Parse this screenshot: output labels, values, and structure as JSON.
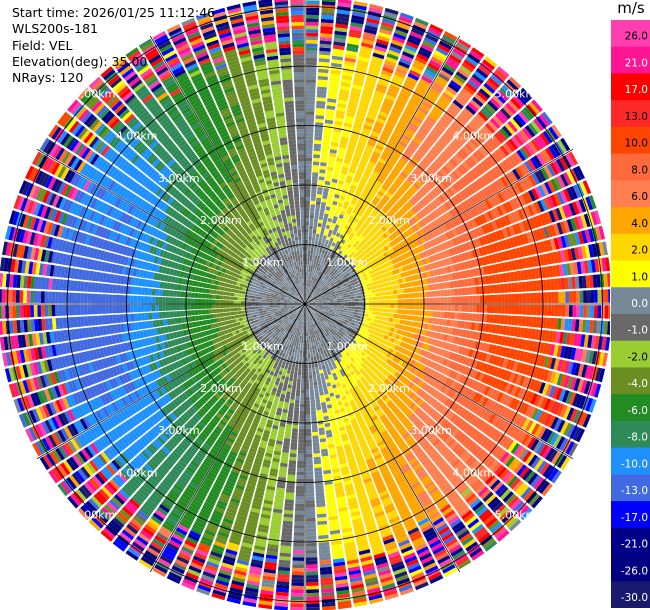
{
  "info": {
    "start_time": "Start time: 2026/01/25 11:12:46",
    "instrument": "WLS200s-181",
    "field": "Field: VEL",
    "elevation": "Elevation(deg): 35.00",
    "nrays": "NRays: 120"
  },
  "colorbar": {
    "unit": "m/s",
    "tick_labels": [
      "26.0",
      "21.0",
      "17.0",
      "13.0",
      "10.0",
      "8.0",
      "6.0",
      "4.0",
      "2.0",
      "1.0",
      "0.0",
      "-1.0",
      "-2.0",
      "-4.0",
      "-6.0",
      "-8.0",
      "-10.0",
      "-13.0",
      "-17.0",
      "-21.0",
      "-26.0",
      "-30.0"
    ],
    "colors": [
      "#ff3eb0",
      "#ff1493",
      "#ff0000",
      "#ff2828",
      "#ff4500",
      "#ff6a3d",
      "#ff7f50",
      "#ffa500",
      "#ffd700",
      "#ffff00",
      "#778899",
      "#696969",
      "#9acd32",
      "#6b8e23",
      "#228b22",
      "#2e8b57",
      "#1e90ff",
      "#4169e1",
      "#0000ff",
      "#00008b",
      "#000080",
      "#191970"
    ]
  },
  "chart_data": {
    "type": "heatmap",
    "projection": "polar PPI",
    "title": "",
    "field": "VEL",
    "unit": "m/s",
    "nrays": 120,
    "elevation_deg": 35.0,
    "range_rings_km": [
      1.0,
      2.0,
      3.0,
      4.0,
      5.0
    ],
    "ring_labels": [
      "1.00km",
      "2.00km",
      "3.00km",
      "4.00km",
      "5.00km"
    ],
    "max_range_km": 5.2,
    "color_scale_m_s": [
      -30,
      -26,
      -21,
      -17,
      -13,
      -10,
      -8,
      -6,
      -4,
      -2,
      -1,
      0,
      1,
      2,
      4,
      6,
      8,
      10,
      13,
      17,
      21,
      26
    ],
    "velocity_pattern": {
      "note": "dipole: positive (yellow/orange/red) toward east, negative (green/blue) toward west; noisy beyond ~4 km",
      "max_abs_velocity_m_s": 11,
      "core_radius_km": 1.0,
      "noise_start_km": 4.1
    }
  }
}
